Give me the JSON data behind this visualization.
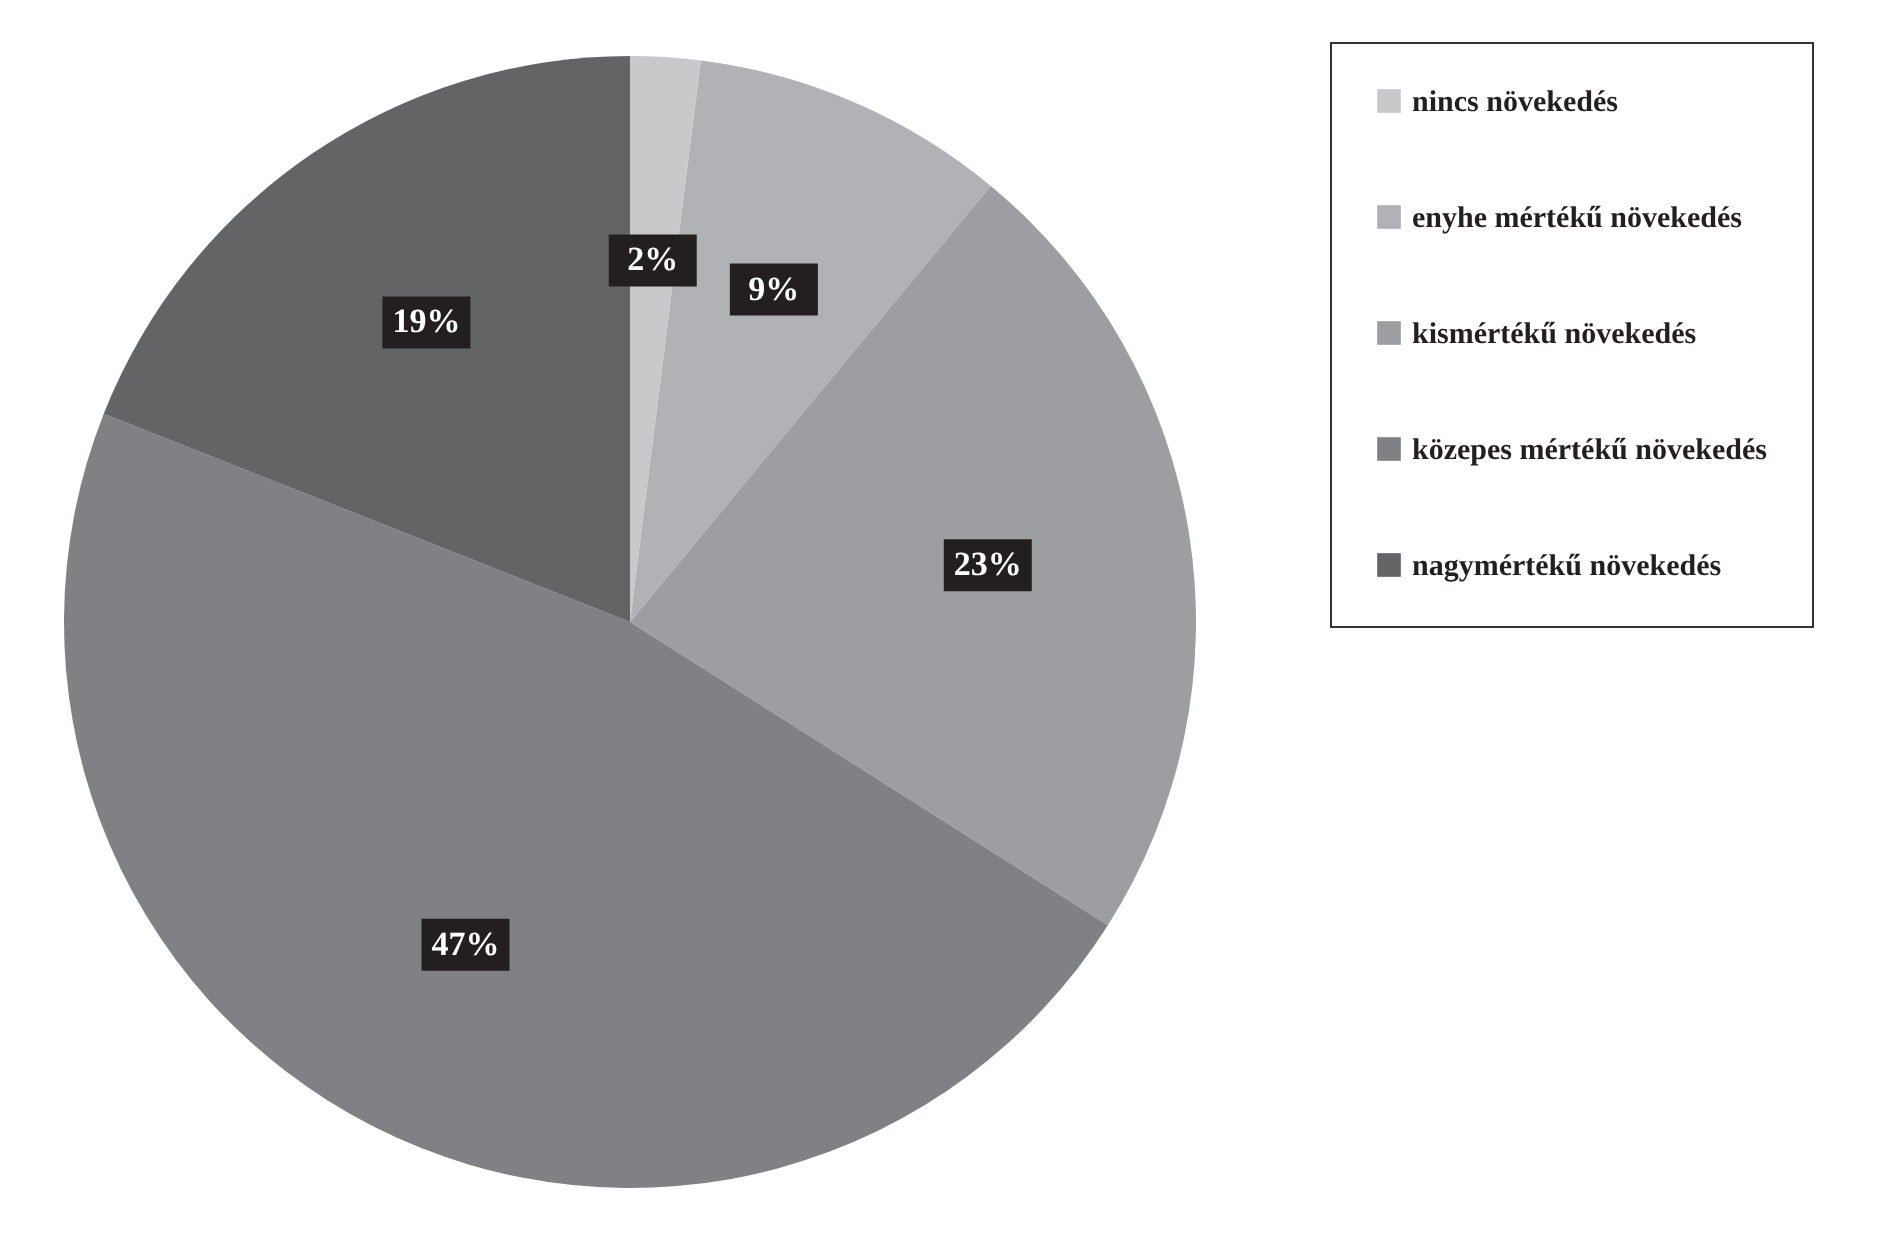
{
  "chart_data": {
    "type": "pie",
    "categories": [
      "nincs növekedés",
      "enyhe mértékű növekedés",
      "kismértékű növekedés",
      "közepes mértékű növekedés",
      "nagymértékű növekedés"
    ],
    "values": [
      2,
      9,
      23,
      47,
      19
    ],
    "value_labels": [
      "2%",
      "9%",
      "23%",
      "47%",
      "19%"
    ],
    "colors": [
      "#c8c9cb",
      "#b1b2b5",
      "#9d9ea1",
      "#808184",
      "#636466"
    ],
    "legend": "right"
  }
}
